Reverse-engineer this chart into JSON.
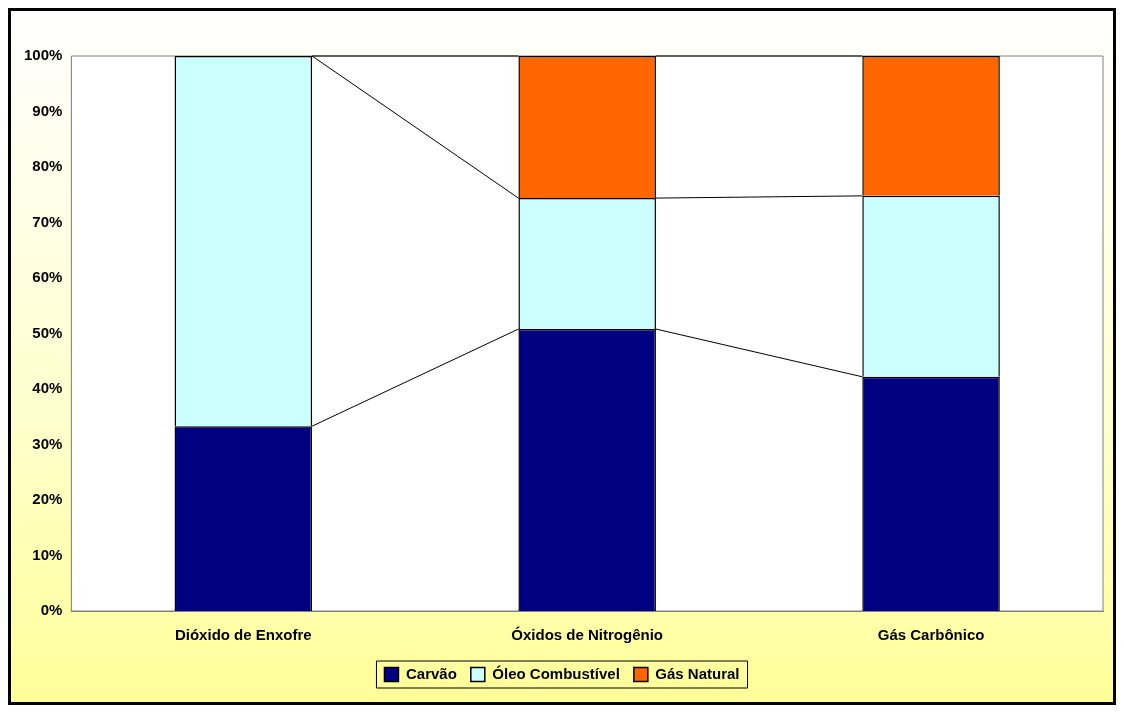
{
  "chart_data": {
    "type": "bar",
    "stacked": true,
    "categories": [
      "Dióxido de Enxofre",
      "Óxidos de Nitrogênio",
      "Gás Carbônico"
    ],
    "series": [
      {
        "name": "Carvão",
        "color": "#000080",
        "values": [
          33.3,
          50.8,
          42.2
        ]
      },
      {
        "name": "Óleo Combustível",
        "color": "#ccffff",
        "values": [
          66.7,
          23.6,
          32.6
        ]
      },
      {
        "name": "Gás Natural",
        "color": "#ff6600",
        "values": [
          0,
          25.6,
          25.2
        ]
      }
    ],
    "ylim": [
      0,
      100
    ],
    "yticks": [
      {
        "value": 0,
        "label": "0%"
      },
      {
        "value": 10,
        "label": "10%"
      },
      {
        "value": 20,
        "label": "20%"
      },
      {
        "value": 30,
        "label": "30%"
      },
      {
        "value": 40,
        "label": "40%"
      },
      {
        "value": 50,
        "label": "50%"
      },
      {
        "value": 60,
        "label": "60%"
      },
      {
        "value": 70,
        "label": "70%"
      },
      {
        "value": 80,
        "label": "80%"
      },
      {
        "value": 90,
        "label": "90%"
      },
      {
        "value": 100,
        "label": "100%"
      }
    ],
    "grid": false,
    "legend": "bottom"
  }
}
